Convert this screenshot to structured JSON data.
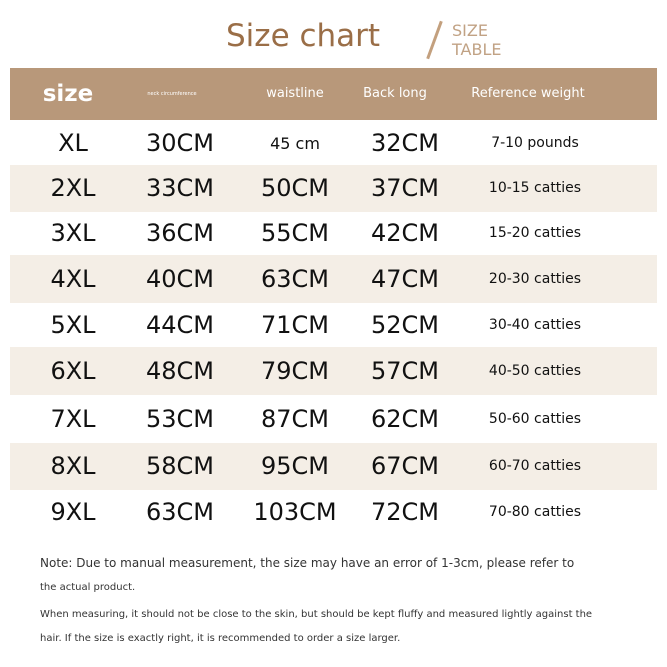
{
  "title": "Size chart",
  "subtitle": [
    "SIZE",
    "TABLE"
  ],
  "colors": {
    "title": "#9a6e47",
    "header_bg": "#b8987a",
    "alt_row": "#f4eee6"
  },
  "headers": [
    "size",
    "neck circumference",
    "waistline",
    "Back long",
    "Reference weight"
  ],
  "rows": [
    [
      "XL",
      "30CM",
      "45 cm",
      "32CM",
      "7-10 pounds"
    ],
    [
      "2XL",
      "33CM",
      "50CM",
      "37CM",
      "10-15 catties"
    ],
    [
      "3XL",
      "36CM",
      "55CM",
      "42CM",
      "15-20 catties"
    ],
    [
      "4XL",
      "40CM",
      "63CM",
      "47CM",
      "20-30 catties"
    ],
    [
      "5XL",
      "44CM",
      "71CM",
      "52CM",
      "30-40 catties"
    ],
    [
      "6XL",
      "48CM",
      "79CM",
      "57CM",
      "40-50 catties"
    ],
    [
      "7XL",
      "53CM",
      "87CM",
      "62CM",
      "50-60 catties"
    ],
    [
      "8XL",
      "58CM",
      "95CM",
      "67CM",
      "60-70 catties"
    ],
    [
      "9XL",
      "63CM",
      "103CM",
      "72CM",
      "70-80 catties"
    ]
  ],
  "notes": [
    "Note: Due to manual measurement, the size may have an error of 1-3cm, please refer to",
    "the actual product.",
    "When measuring, it should not be close to the skin, but should be kept fluffy and measured lightly against the",
    "hair. If the size is exactly right, it is recommended to order a size larger."
  ]
}
